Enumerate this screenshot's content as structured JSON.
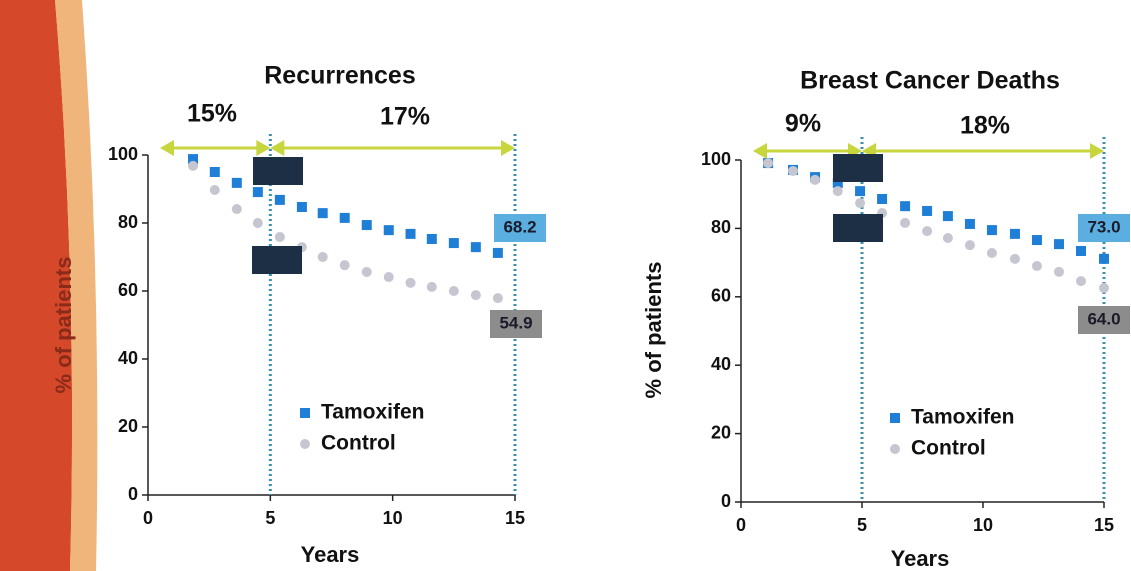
{
  "chart_data": [
    {
      "type": "scatter",
      "title": "Recurrences",
      "x_label": "Years",
      "y_label": "% of patients",
      "xlim": [
        0,
        15
      ],
      "xticks": [
        0,
        5,
        10,
        15
      ],
      "ylim": [
        0,
        100
      ],
      "yticks": [
        0,
        20,
        40,
        60,
        80,
        100
      ],
      "legend": "lower left",
      "series": [
        {
          "name": "Tamoxifen",
          "color": "#1f7fd6",
          "marker": "square",
          "x": [
            1.84,
            2.73,
            3.63,
            4.49,
            5.39,
            6.29,
            7.14,
            8.04,
            8.94,
            9.84,
            10.73,
            11.6,
            12.5,
            13.4,
            14.3
          ],
          "values": [
            98.8,
            95,
            91.8,
            89.1,
            86.8,
            84.7,
            82.9,
            81.5,
            79.4,
            77.9,
            76.8,
            75.3,
            74.1,
            72.9,
            71.2
          ]
        },
        {
          "name": "Control",
          "color": "#c6c6d0",
          "marker": "circle",
          "x": [
            1.84,
            2.73,
            3.63,
            4.49,
            5.39,
            6.29,
            7.14,
            8.04,
            8.94,
            9.84,
            10.73,
            11.6,
            12.5,
            13.4,
            14.3
          ],
          "values": [
            96.8,
            89.7,
            84.1,
            80,
            75.9,
            72.9,
            70,
            67.6,
            65.6,
            64.1,
            62.4,
            61.2,
            60,
            58.8,
            57.9
          ]
        }
      ],
      "annotations": [
        "15%",
        "17%",
        "68.2",
        "54.9"
      ]
    },
    {
      "type": "scatter",
      "title": "Breast Cancer Deaths",
      "x_label": "Years",
      "y_label": "% of patients",
      "xlim": [
        0,
        15
      ],
      "xticks": [
        0,
        5,
        10,
        15
      ],
      "ylim": [
        0,
        100
      ],
      "yticks": [
        0,
        20,
        40,
        60,
        80,
        100
      ],
      "legend": "lower left",
      "series": [
        {
          "name": "Tamoxifen",
          "color": "#1f7fd6",
          "marker": "square",
          "x": [
            1.12,
            2.15,
            3.06,
            4.0,
            4.92,
            5.83,
            6.78,
            7.69,
            8.55,
            9.46,
            10.37,
            11.32,
            12.23,
            13.14,
            14.05,
            15
          ],
          "values": [
            99.1,
            97.1,
            95,
            93.3,
            90.9,
            88.6,
            86.5,
            85.1,
            83.6,
            81.3,
            79.5,
            78.4,
            76.6,
            75.4,
            73.4,
            71.1
          ]
        },
        {
          "name": "Control",
          "color": "#c6c6d0",
          "marker": "circle",
          "x": [
            1.12,
            2.15,
            3.06,
            4.0,
            4.92,
            5.83,
            6.78,
            7.69,
            8.55,
            9.46,
            10.37,
            11.32,
            12.23,
            13.14,
            14.05,
            15
          ],
          "values": [
            99.1,
            96.8,
            94.2,
            90.9,
            87.4,
            84.5,
            81.6,
            79.2,
            77.2,
            75.1,
            72.8,
            71.1,
            69,
            67.3,
            64.6,
            62.6
          ]
        }
      ],
      "annotations": [
        "9%",
        "18%",
        "73.0",
        "64.0"
      ]
    }
  ]
}
